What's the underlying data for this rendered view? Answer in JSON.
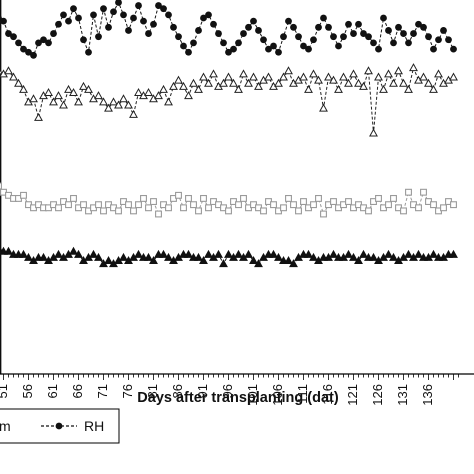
{
  "chart_data": {
    "type": "line",
    "title": "",
    "xlabel": "Days after transplanting (dat)",
    "ylabel": "",
    "x_ticks": [
      "51",
      "56",
      "61",
      "66",
      "71",
      "76",
      "81",
      "86",
      "91",
      "96",
      "101",
      "106",
      "111",
      "116",
      "121",
      "126",
      "131",
      "136"
    ],
    "x_visible_range": [
      50,
      142
    ],
    "grid": false,
    "legend": {
      "placement": "bottom",
      "visible_entries": [
        "m",
        "RH"
      ]
    },
    "series_colors": {
      "rh": "#111111",
      "open_triangle": "#222222",
      "open_square": "#9a9a9a",
      "filled_triangle": "#111111"
    },
    "series": [
      {
        "name": "RH",
        "marker": "filled-circle",
        "line": "dashed",
        "x": [
          50,
          51,
          52,
          53,
          54,
          55,
          56,
          57,
          58,
          59,
          60,
          61,
          62,
          63,
          64,
          65,
          66,
          67,
          68,
          69,
          70,
          71,
          72,
          73,
          74,
          75,
          76,
          77,
          78,
          79,
          80,
          81,
          82,
          83,
          84,
          85,
          86,
          87,
          88,
          89,
          90,
          91,
          92,
          93,
          94,
          95,
          96,
          97,
          98,
          99,
          100,
          101,
          102,
          103,
          104,
          105,
          106,
          107,
          108,
          109,
          110,
          111,
          112,
          113,
          114,
          115,
          116,
          117,
          118,
          119,
          120,
          121,
          122,
          123,
          124,
          125,
          126,
          127,
          128,
          129,
          130,
          131,
          132,
          133,
          134,
          135,
          136,
          137,
          138,
          139,
          140,
          141
        ],
        "y": [
          85.5,
          85.0,
          83.0,
          82.5,
          81.5,
          80.5,
          80.0,
          79.5,
          81.5,
          82.0,
          81.5,
          83.0,
          84.5,
          86.0,
          85.0,
          87.0,
          85.5,
          82.0,
          80.0,
          86.0,
          82.5,
          87.0,
          84.0,
          86.5,
          88.0,
          86.0,
          83.5,
          85.5,
          87.5,
          85.0,
          83.0,
          84.5,
          87.5,
          87.0,
          86.0,
          84.0,
          82.5,
          81.0,
          80.0,
          81.5,
          83.5,
          85.5,
          86.0,
          84.5,
          83.0,
          81.5,
          80.0,
          80.5,
          81.5,
          83.0,
          84.0,
          85.0,
          83.5,
          82.0,
          80.5,
          81.0,
          80.0,
          82.5,
          85.0,
          84.0,
          82.5,
          81.0,
          80.5,
          82.0,
          84.0,
          85.5,
          84.0,
          82.5,
          81.0,
          82.5,
          84.5,
          83.0,
          84.5,
          83.0,
          82.5,
          81.5,
          80.5,
          85.5,
          83.5,
          81.5,
          84.0,
          83.0,
          81.5,
          83.0,
          84.5,
          84.0,
          82.5,
          80.5,
          82.0,
          83.5,
          82.0,
          80.5
        ]
      },
      {
        "marker": "open-triangle",
        "line": "dashed",
        "x": [
          50,
          51,
          52,
          53,
          54,
          55,
          56,
          57,
          58,
          59,
          60,
          61,
          62,
          63,
          64,
          65,
          66,
          67,
          68,
          69,
          70,
          71,
          72,
          73,
          74,
          75,
          76,
          77,
          78,
          79,
          80,
          81,
          82,
          83,
          84,
          85,
          86,
          87,
          88,
          89,
          90,
          91,
          92,
          93,
          94,
          95,
          96,
          97,
          98,
          99,
          100,
          101,
          102,
          103,
          104,
          105,
          106,
          107,
          108,
          109,
          110,
          111,
          112,
          113,
          114,
          115,
          116,
          117,
          118,
          119,
          120,
          121,
          122,
          123,
          124,
          125,
          126,
          127,
          128,
          129,
          130,
          131,
          132,
          133,
          134,
          135,
          136,
          137,
          138,
          139,
          140,
          141
        ],
        "y": [
          77.0,
          76.5,
          77.0,
          76.0,
          75.0,
          74.0,
          72.0,
          72.5,
          69.5,
          73.0,
          73.5,
          72.0,
          73.0,
          71.5,
          74.0,
          73.5,
          72.0,
          74.5,
          74.0,
          72.5,
          73.0,
          72.0,
          71.0,
          72.0,
          71.5,
          72.5,
          71.5,
          70.0,
          73.5,
          73.0,
          73.5,
          72.5,
          73.0,
          74.0,
          72.0,
          74.5,
          75.5,
          74.5,
          73.0,
          75.0,
          74.0,
          76.0,
          75.0,
          76.5,
          74.5,
          75.0,
          76.0,
          75.0,
          74.0,
          76.5,
          75.0,
          76.0,
          74.5,
          75.5,
          76.0,
          74.5,
          75.0,
          76.0,
          77.0,
          75.0,
          75.5,
          76.0,
          74.0,
          76.5,
          75.5,
          71.0,
          76.0,
          75.5,
          74.0,
          76.0,
          75.0,
          76.5,
          75.0,
          74.5,
          77.0,
          67.0,
          76.0,
          74.0,
          76.5,
          75.0,
          77.0,
          75.0,
          74.0,
          77.5,
          75.5,
          76.0,
          75.0,
          74.0,
          76.5,
          75.0,
          75.5,
          76.0
        ]
      },
      {
        "marker": "open-square",
        "line": "dashed",
        "x": [
          50,
          51,
          52,
          53,
          54,
          55,
          56,
          57,
          58,
          59,
          60,
          61,
          62,
          63,
          64,
          65,
          66,
          67,
          68,
          69,
          70,
          71,
          72,
          73,
          74,
          75,
          76,
          77,
          78,
          79,
          80,
          81,
          82,
          83,
          84,
          85,
          86,
          87,
          88,
          89,
          90,
          91,
          92,
          93,
          94,
          95,
          96,
          97,
          98,
          99,
          100,
          101,
          102,
          103,
          104,
          105,
          106,
          107,
          108,
          109,
          110,
          111,
          112,
          113,
          114,
          115,
          116,
          117,
          118,
          119,
          120,
          121,
          122,
          123,
          124,
          125,
          126,
          127,
          128,
          129,
          130,
          131,
          132,
          133,
          134,
          135,
          136,
          137,
          138,
          139,
          140,
          141
        ],
        "y": [
          58.5,
          57.5,
          57.0,
          56.5,
          56.5,
          57.0,
          55.5,
          55.0,
          55.5,
          55.0,
          55.0,
          55.5,
          55.0,
          56.0,
          55.5,
          56.5,
          55.0,
          55.5,
          54.5,
          55.0,
          55.5,
          54.5,
          55.5,
          55.0,
          54.5,
          56.0,
          55.5,
          54.5,
          55.5,
          56.5,
          55.0,
          56.0,
          54.0,
          55.5,
          55.0,
          56.5,
          57.0,
          55.0,
          56.5,
          55.5,
          54.5,
          56.5,
          55.0,
          56.0,
          55.5,
          55.0,
          54.5,
          56.0,
          55.5,
          56.5,
          55.0,
          55.5,
          55.0,
          54.5,
          56.0,
          55.5,
          54.5,
          55.0,
          56.5,
          55.5,
          54.5,
          56.0,
          55.0,
          55.5,
          56.5,
          54.0,
          55.5,
          56.0,
          55.0,
          55.5,
          56.0,
          55.0,
          55.5,
          55.0,
          54.5,
          56.0,
          56.5,
          55.0,
          55.5,
          56.5,
          55.0,
          54.5,
          57.5,
          55.5,
          55.0,
          57.5,
          56.0,
          55.5,
          54.5,
          55.0,
          56.0,
          55.5
        ]
      },
      {
        "marker": "filled-triangle",
        "line": "dashed",
        "x": [
          50,
          51,
          52,
          53,
          54,
          55,
          56,
          57,
          58,
          59,
          60,
          61,
          62,
          63,
          64,
          65,
          66,
          67,
          68,
          69,
          70,
          71,
          72,
          73,
          74,
          75,
          76,
          77,
          78,
          79,
          80,
          81,
          82,
          83,
          84,
          85,
          86,
          87,
          88,
          89,
          90,
          91,
          92,
          93,
          94,
          95,
          96,
          97,
          98,
          99,
          100,
          101,
          102,
          103,
          104,
          105,
          106,
          107,
          108,
          109,
          110,
          111,
          112,
          113,
          114,
          115,
          116,
          117,
          118,
          119,
          120,
          121,
          122,
          123,
          124,
          125,
          126,
          127,
          128,
          129,
          130,
          131,
          132,
          133,
          134,
          135,
          136,
          137,
          138,
          139,
          140,
          141
        ],
        "y": [
          48.5,
          48.0,
          48.0,
          47.5,
          47.5,
          47.5,
          47.0,
          46.5,
          47.0,
          47.0,
          46.5,
          47.0,
          47.5,
          47.0,
          47.5,
          48.0,
          47.5,
          46.5,
          47.0,
          47.5,
          47.0,
          46.0,
          46.5,
          46.0,
          46.5,
          47.0,
          46.5,
          47.0,
          47.5,
          47.0,
          47.0,
          46.5,
          47.5,
          47.5,
          47.0,
          46.5,
          47.0,
          47.5,
          47.5,
          47.0,
          47.0,
          46.5,
          47.5,
          47.0,
          47.5,
          46.0,
          47.5,
          47.0,
          47.5,
          47.0,
          47.5,
          46.5,
          46.0,
          47.0,
          47.5,
          47.5,
          47.0,
          46.5,
          46.5,
          46.0,
          47.0,
          47.5,
          47.5,
          47.0,
          46.5,
          47.0,
          47.0,
          47.5,
          47.0,
          47.0,
          47.5,
          47.0,
          46.5,
          47.5,
          47.0,
          47.0,
          46.5,
          47.0,
          47.5,
          47.0,
          46.5,
          47.0,
          47.5,
          47.0,
          47.5,
          47.0,
          47.0,
          47.5,
          47.0,
          47.0,
          47.5,
          47.5
        ]
      }
    ]
  }
}
